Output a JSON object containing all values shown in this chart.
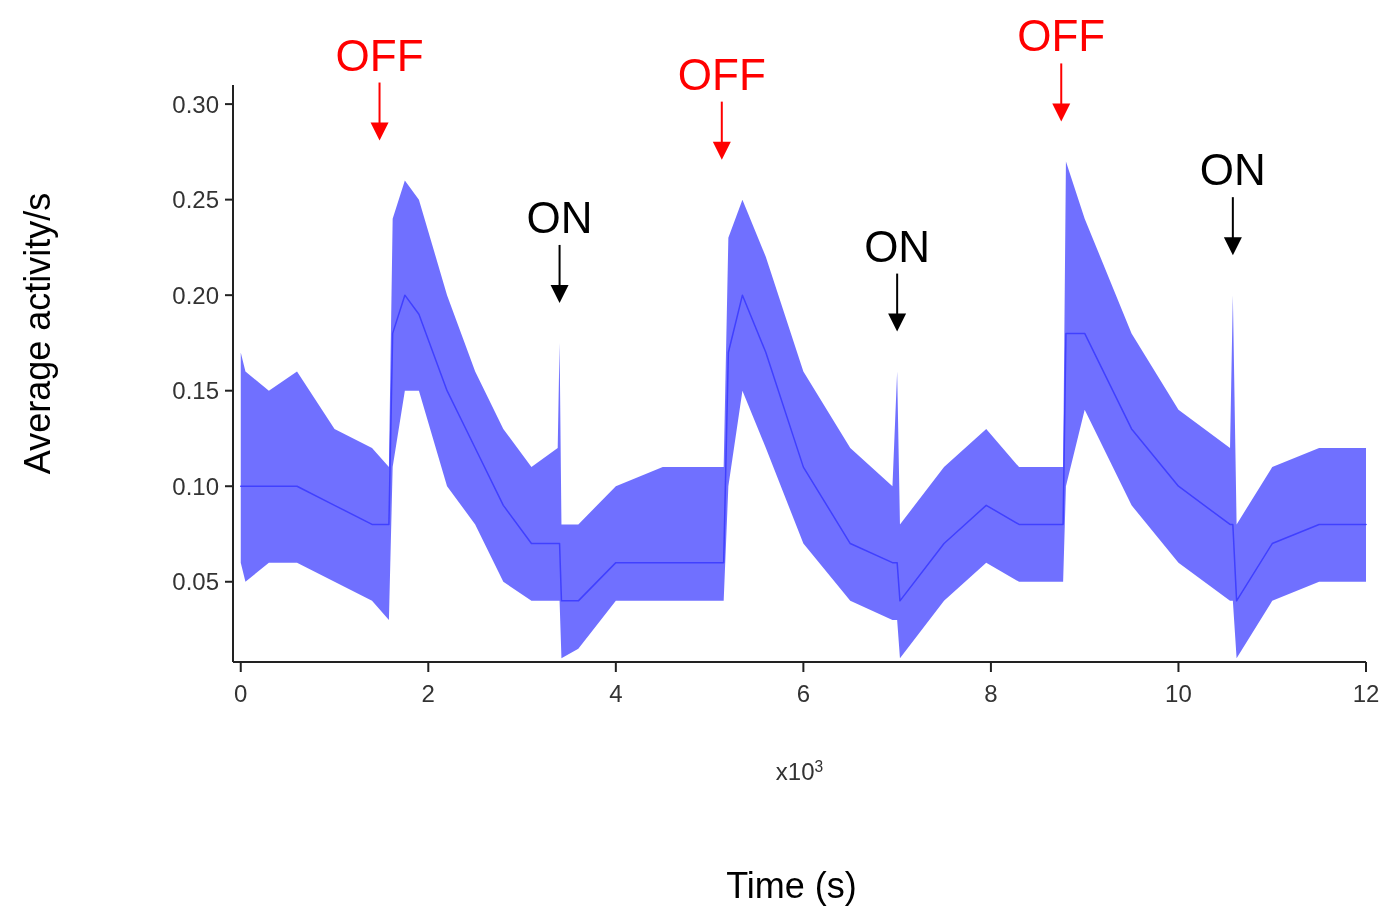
{
  "chart_data": {
    "type": "line",
    "xlabel": "Time (s)",
    "ylabel": "Average activity/s",
    "xlim": [
      -0.04,
      12
    ],
    "xticks": [
      0,
      2,
      4,
      6,
      8,
      10,
      12
    ],
    "ylim": [
      0.008,
      0.31
    ],
    "yticks": [
      {
        "value": 0.05,
        "label": "0.05"
      },
      {
        "value": 0.1,
        "label": "0.10"
      },
      {
        "value": 0.15,
        "label": "0.15"
      },
      {
        "value": 0.2,
        "label": "0.20"
      },
      {
        "value": 0.25,
        "label": "0.25"
      },
      {
        "value": 0.3,
        "label": "0.30"
      }
    ],
    "grid": false,
    "marker": "none",
    "line_style": "solid",
    "series": [
      {
        "color": "#4040ff",
        "x": [
          0,
          0.05,
          0.3,
          0.6,
          1.0,
          1.4,
          1.58,
          1.62,
          1.75,
          1.9,
          2.2,
          2.5,
          2.8,
          3.1,
          3.38,
          3.4,
          3.42,
          3.6,
          4.0,
          4.5,
          5.15,
          5.2,
          5.35,
          5.6,
          6.0,
          6.5,
          6.95,
          7.0,
          7.03,
          7.5,
          7.95,
          8.3,
          8.77,
          8.8,
          9.0,
          9.5,
          10.0,
          10.55,
          10.58,
          10.62,
          11.0,
          11.5,
          12.0
        ],
        "values": [
          0.1,
          0.1,
          0.1,
          0.1,
          0.09,
          0.08,
          0.08,
          0.18,
          0.2,
          0.19,
          0.15,
          0.12,
          0.09,
          0.07,
          0.07,
          0.07,
          0.04,
          0.04,
          0.06,
          0.06,
          0.06,
          0.17,
          0.2,
          0.17,
          0.11,
          0.07,
          0.06,
          0.06,
          0.04,
          0.07,
          0.09,
          0.08,
          0.08,
          0.18,
          0.18,
          0.13,
          0.1,
          0.08,
          0.08,
          0.04,
          0.07,
          0.08,
          0.08
        ],
        "lower": [
          0.06,
          0.05,
          0.06,
          0.06,
          0.05,
          0.04,
          0.03,
          0.11,
          0.15,
          0.15,
          0.1,
          0.08,
          0.05,
          0.04,
          0.04,
          0.04,
          0.01,
          0.015,
          0.04,
          0.04,
          0.04,
          0.1,
          0.15,
          0.12,
          0.07,
          0.04,
          0.03,
          0.03,
          0.01,
          0.04,
          0.06,
          0.05,
          0.05,
          0.1,
          0.14,
          0.09,
          0.06,
          0.04,
          0.04,
          0.01,
          0.04,
          0.05,
          0.05
        ],
        "upper": [
          0.17,
          0.16,
          0.15,
          0.16,
          0.13,
          0.12,
          0.11,
          0.24,
          0.26,
          0.25,
          0.2,
          0.16,
          0.13,
          0.11,
          0.12,
          0.175,
          0.08,
          0.08,
          0.1,
          0.11,
          0.11,
          0.23,
          0.25,
          0.22,
          0.16,
          0.12,
          0.1,
          0.16,
          0.08,
          0.11,
          0.13,
          0.11,
          0.11,
          0.27,
          0.24,
          0.18,
          0.14,
          0.12,
          0.2,
          0.08,
          0.11,
          0.12,
          0.12
        ]
      }
    ],
    "annotations": [
      "x10$^{3}$"
    ],
    "ref_lines": [
      {
        "axis": "x",
        "value": 1.48,
        "label": "OFF",
        "color": "#ff0000"
      },
      {
        "axis": "x",
        "value": 3.4,
        "label": "ON",
        "color": "#000000"
      },
      {
        "axis": "x",
        "value": 5.13,
        "label": "OFF",
        "color": "#ff0000"
      },
      {
        "axis": "x",
        "value": 7.0,
        "label": "ON",
        "color": "#000000"
      },
      {
        "axis": "x",
        "value": 8.75,
        "label": "OFF",
        "color": "#ff0000"
      },
      {
        "axis": "x",
        "value": 10.58,
        "label": "ON",
        "color": "#000000"
      }
    ]
  }
}
